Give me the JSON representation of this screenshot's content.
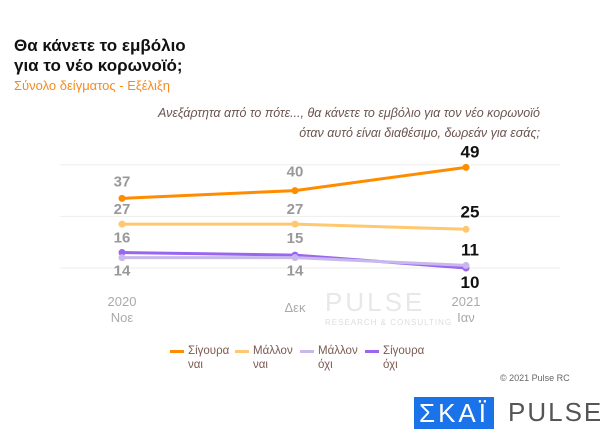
{
  "title_line1": "Θα κάνετε το εμβόλιο",
  "title_line2": "για το νέο κορωνοϊό;",
  "subtitle": "Σύνολο δείγματος - Εξέλιξη",
  "question_line1": "Ανεξάρτητα από το πότε..., θα κάνετε το εμβόλιο για τον νέο κορωνοϊό",
  "question_line2": "όταν αυτό είναι διαθέσιμο, δωρεάν για εσάς;",
  "copyright": "© 2021 Pulse RC",
  "logos": {
    "skai": "ΣΚΑΪ",
    "pulse": "PULSE",
    "watermark": "PULSE",
    "watermark_sub": "RESEARCH & CONSULTING"
  },
  "chart_data": {
    "type": "line",
    "categories": [
      [
        "2020",
        "Νοε"
      ],
      [
        "",
        "Δεκ"
      ],
      [
        "2021",
        "Ιαν"
      ]
    ],
    "ylim": [
      10,
      50
    ],
    "grid": true,
    "legend_placement": "bottom",
    "series": [
      {
        "name": "Σίγουρα ναι",
        "name_lines": [
          "Σίγουρα",
          "ναι"
        ],
        "values": [
          37,
          40,
          49
        ],
        "color": "#ff8c00"
      },
      {
        "name": "Μάλλον ναι",
        "name_lines": [
          "Μάλλον",
          "ναι"
        ],
        "values": [
          27,
          27,
          25
        ],
        "color": "#ffc870"
      },
      {
        "name": "Μάλλον όχι",
        "name_lines": [
          "Μάλλον",
          "όχι"
        ],
        "values": [
          14,
          14,
          11
        ],
        "color": "#c8b8ec"
      },
      {
        "name": "Σίγουρα όχι",
        "name_lines": [
          "Σίγουρα",
          "όχι"
        ],
        "values": [
          16,
          15,
          10
        ],
        "color": "#9a66f0"
      }
    ]
  }
}
